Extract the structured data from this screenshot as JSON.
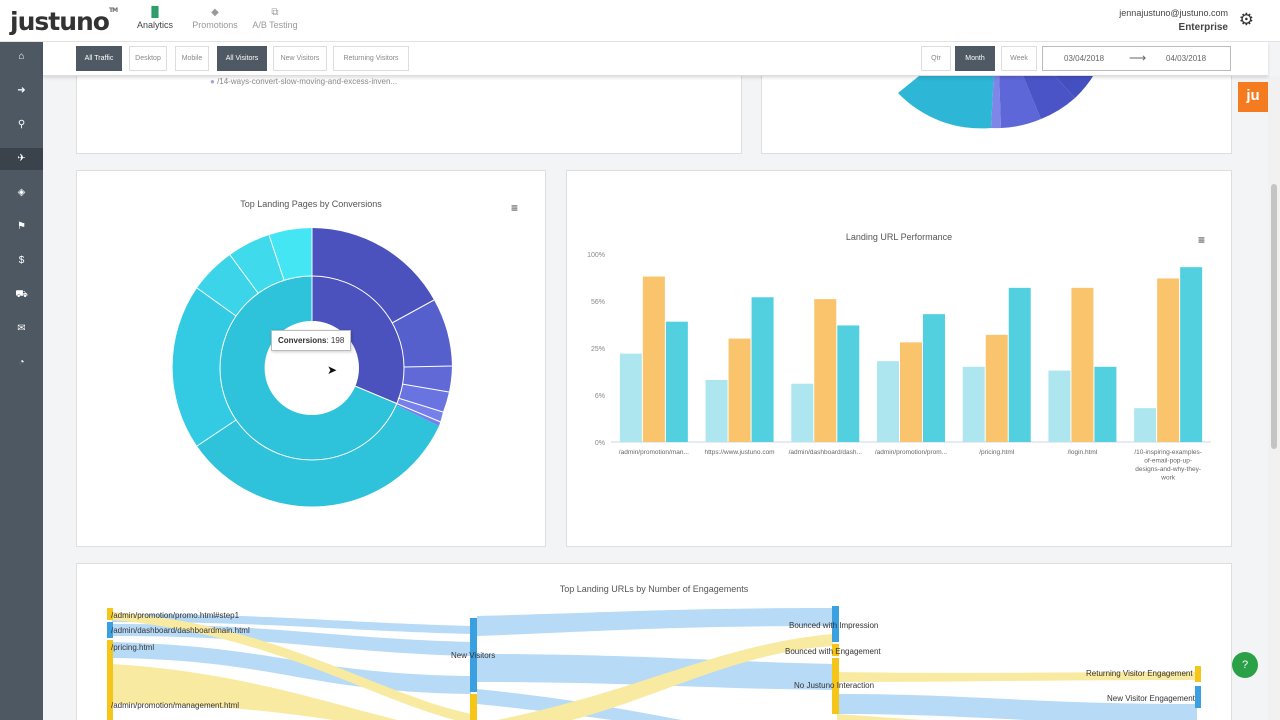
{
  "brand": {
    "name": "justuno",
    "tm": "TM",
    "accent_green": "#2e9c68",
    "badge_orange": "#f47b20"
  },
  "topnav": [
    {
      "label": "Analytics",
      "icon": "chart-icon",
      "glyph": "▐▌",
      "active": true
    },
    {
      "label": "Promotions",
      "icon": "tag-icon",
      "glyph": "◆",
      "active": false
    },
    {
      "label": "A/B Testing",
      "icon": "ab-test-icon",
      "glyph": "⧉",
      "active": false
    }
  ],
  "user": {
    "email": "jennajustuno@justuno.com",
    "plan": "Enterprise"
  },
  "sidebar": [
    {
      "icon": "home-icon",
      "glyph": "⌂"
    },
    {
      "icon": "sign-in-icon",
      "glyph": "➜"
    },
    {
      "icon": "search-icon",
      "glyph": "⚲"
    },
    {
      "icon": "plane-icon",
      "glyph": "✈",
      "active": true
    },
    {
      "icon": "tags-icon",
      "glyph": "◈"
    },
    {
      "icon": "flag-icon",
      "glyph": "⚑"
    },
    {
      "icon": "dollar-icon",
      "glyph": "$"
    },
    {
      "icon": "cart-icon",
      "glyph": "⛟"
    },
    {
      "icon": "envelope-icon",
      "glyph": "✉"
    },
    {
      "icon": "dashboard-icon",
      "glyph": "◔"
    }
  ],
  "filters": {
    "traffic": [
      {
        "label": "All Traffic",
        "on": true
      },
      {
        "label": "Desktop",
        "on": false
      },
      {
        "label": "Mobile",
        "on": false
      }
    ],
    "visitors": [
      {
        "label": "All Visitors",
        "on": true
      },
      {
        "label": "New Visitors",
        "on": false
      },
      {
        "label": "Returning Visitors",
        "on": false
      }
    ],
    "period": [
      {
        "label": "Qtr",
        "on": false
      },
      {
        "label": "Month",
        "on": true
      },
      {
        "label": "Week",
        "on": false
      }
    ],
    "date_from": "03/04/2018",
    "date_arrow": "⟶",
    "date_to": "04/03/2018"
  },
  "top_partial": {
    "url_text": "/14-ways-convert-slow-moving-and-excess-inven..."
  },
  "sunburst": {
    "title": "Top Landing Pages by Conversions",
    "tooltip_label": "Conversions",
    "tooltip_value": "198"
  },
  "chart_data": {
    "type": "bar",
    "title": "Landing URL Performance",
    "categories": [
      "/admin/promotion/man...",
      "https://www.justuno.com",
      "/admin/dashboard/dash...",
      "/admin/promotion/prom...",
      "/pricing.html",
      "/login.html",
      "/10-inspiring-examples-of-email-pop-up-designs-and-why-they-work"
    ],
    "category_lines": [
      [
        "/admin/promotion/man..."
      ],
      [
        "https://www.justuno.com"
      ],
      [
        "/admin/dashboard/dash..."
      ],
      [
        "/admin/promotion/prom..."
      ],
      [
        "/pricing.html"
      ],
      [
        "/login.html"
      ],
      [
        "/10-inspiring-examples-",
        "of-email-pop-up-",
        "designs-and-why-they-",
        "work"
      ]
    ],
    "series": [
      {
        "color": "#aee6ef",
        "values": [
          47,
          33,
          31,
          43,
          40,
          38,
          18
        ]
      },
      {
        "color": "#f9c46b",
        "values": [
          88,
          55,
          76,
          53,
          57,
          82,
          87
        ]
      },
      {
        "color": "#52d0df",
        "values": [
          64,
          77,
          62,
          68,
          82,
          40,
          93
        ]
      }
    ],
    "yticks": [
      "0%",
      "6%",
      "25%",
      "56%",
      "100%"
    ],
    "ylim": [
      0,
      100
    ],
    "grid": false,
    "legend": "none"
  },
  "sankey": {
    "title": "Top Landing URLs by Number of Engagements",
    "sources": [
      "/admin/promotion/promo.html#step1",
      "/admin/dashboard/dashboardmain.html",
      "/pricing.html",
      "/admin/promotion/management.html"
    ],
    "middle": "New Visitors",
    "outcomes": [
      "Bounced with Impression",
      "Bounced with Engagement",
      "No Justuno Interaction"
    ],
    "engagement": [
      "Returning Visitor Engagement",
      "New Visitor Engagement"
    ]
  },
  "badge": {
    "text": "ju"
  },
  "help": {
    "glyph": "?"
  }
}
